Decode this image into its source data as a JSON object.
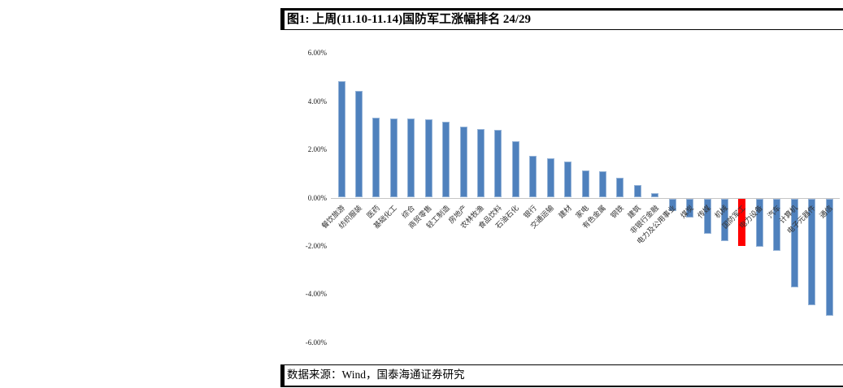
{
  "figure": {
    "title": "图1:  上周(11.10-11.14)国防军工涨幅排名 24/29",
    "source": "数据来源：Wind，国泰海通证券研究"
  },
  "chart_data": {
    "type": "bar",
    "title": "上周(11.10-11.14)国防军工涨幅排名 24/29",
    "categories": [
      "餐饮旅游",
      "纺织服装",
      "医药",
      "基础化工",
      "综合",
      "商贸零售",
      "轻工制造",
      "房地产",
      "农林牧渔",
      "食品饮料",
      "石油石化",
      "银行",
      "交通运输",
      "建材",
      "家电",
      "有色金属",
      "钢铁",
      "建筑",
      "非银行金融",
      "电力及公用事业",
      "煤炭",
      "传媒",
      "机械",
      "国防军工",
      "电力设备",
      "汽车",
      "计算机",
      "电子元器件",
      "通信"
    ],
    "values": [
      4.82,
      4.43,
      3.3,
      3.29,
      3.27,
      3.24,
      3.16,
      2.95,
      2.84,
      2.82,
      2.33,
      1.72,
      1.62,
      1.51,
      1.13,
      1.11,
      0.81,
      0.53,
      0.17,
      -0.52,
      -0.8,
      -1.48,
      -1.78,
      -1.98,
      -2.02,
      -2.17,
      -3.7,
      -4.43,
      -4.88
    ],
    "highlight": {
      "category": "国防军工",
      "index": 23,
      "color": "#ff0000",
      "border_color": "#ff0000"
    },
    "bar_color": "#4f81bd",
    "bar_border_color": "#95b3d7",
    "axis_line_color": "#c6c6c6",
    "y_ticks": [
      "6.00%",
      "4.00%",
      "2.00%",
      "0.00%",
      "-2.00%",
      "-4.00%",
      "-6.00%"
    ],
    "y_tick_values": [
      6,
      4,
      2,
      0,
      -2,
      -4,
      -6
    ],
    "ylim": [
      -6,
      6
    ],
    "xlabel": "",
    "ylabel": "",
    "grid": false,
    "legend": "none"
  }
}
